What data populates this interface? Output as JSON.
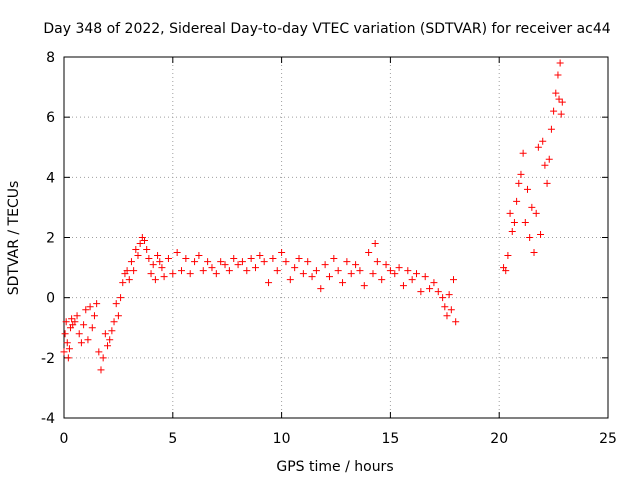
{
  "chart_data": {
    "type": "scatter",
    "title": "Day 348 of 2022, Sidereal Day-to-day VTEC variation (SDTVAR) for receiver ac44",
    "xlabel": "GPS time / hours",
    "ylabel": "SDTVAR / TECUs",
    "xlim": [
      0,
      25
    ],
    "ylim": [
      -4,
      8
    ],
    "xticks": [
      0,
      5,
      10,
      15,
      20,
      25
    ],
    "xtick_labels": [
      "0",
      "5",
      "10",
      "15",
      "20",
      "25"
    ],
    "yticks": [
      -4,
      -2,
      0,
      2,
      4,
      6,
      8
    ],
    "ytick_labels": [
      "-4",
      "-2",
      "0",
      "2",
      "4",
      "6",
      "8"
    ],
    "grid": true,
    "marker": "+",
    "color": "#ff0000",
    "series": [
      {
        "name": "SDTVAR",
        "x": [
          0.0,
          0.05,
          0.1,
          0.15,
          0.2,
          0.25,
          0.3,
          0.35,
          0.4,
          0.5,
          0.6,
          0.7,
          0.8,
          0.9,
          1.0,
          1.1,
          1.2,
          1.3,
          1.4,
          1.5,
          1.6,
          1.7,
          1.8,
          1.9,
          2.0,
          2.1,
          2.2,
          2.3,
          2.4,
          2.5,
          2.6,
          2.7,
          2.8,
          2.9,
          3.0,
          3.1,
          3.2,
          3.3,
          3.4,
          3.5,
          3.6,
          3.7,
          3.8,
          3.9,
          4.0,
          4.1,
          4.2,
          4.3,
          4.4,
          4.5,
          4.6,
          4.8,
          5.0,
          5.2,
          5.4,
          5.6,
          5.8,
          6.0,
          6.2,
          6.4,
          6.6,
          6.8,
          7.0,
          7.2,
          7.4,
          7.6,
          7.8,
          8.0,
          8.2,
          8.4,
          8.6,
          8.8,
          9.0,
          9.2,
          9.4,
          9.6,
          9.8,
          10.0,
          10.2,
          10.4,
          10.6,
          10.8,
          11.0,
          11.2,
          11.4,
          11.6,
          11.8,
          12.0,
          12.2,
          12.4,
          12.6,
          12.8,
          13.0,
          13.2,
          13.4,
          13.6,
          13.8,
          14.0,
          14.2,
          14.3,
          14.4,
          14.6,
          14.8,
          15.0,
          15.2,
          15.4,
          15.6,
          15.8,
          16.0,
          16.2,
          16.4,
          16.6,
          16.8,
          17.0,
          17.2,
          17.4,
          17.5,
          17.6,
          17.7,
          17.8,
          17.9,
          18.0,
          20.2,
          20.3,
          20.4,
          20.5,
          20.6,
          20.7,
          20.8,
          20.9,
          21.0,
          21.1,
          21.2,
          21.3,
          21.4,
          21.5,
          21.6,
          21.7,
          21.8,
          21.9,
          22.0,
          22.1,
          22.2,
          22.3,
          22.4,
          22.5,
          22.6,
          22.7,
          22.75,
          22.8,
          22.85,
          22.9
        ],
        "y": [
          -1.8,
          -1.2,
          -0.8,
          -1.5,
          -2.0,
          -1.7,
          -1.0,
          -0.7,
          -0.9,
          -0.8,
          -0.6,
          -1.2,
          -1.5,
          -0.9,
          -0.4,
          -1.4,
          -0.3,
          -1.0,
          -0.6,
          -0.2,
          -1.8,
          -2.4,
          -2.0,
          -1.2,
          -1.6,
          -1.4,
          -1.1,
          -0.8,
          -0.2,
          -0.6,
          0.0,
          0.5,
          0.8,
          0.9,
          0.6,
          1.2,
          0.9,
          1.6,
          1.4,
          1.8,
          2.0,
          1.9,
          1.6,
          1.3,
          0.8,
          1.1,
          0.6,
          1.4,
          1.2,
          1.0,
          0.7,
          1.3,
          0.8,
          1.5,
          0.9,
          1.3,
          0.8,
          1.2,
          1.4,
          0.9,
          1.2,
          1.0,
          0.8,
          1.2,
          1.1,
          0.9,
          1.3,
          1.1,
          1.2,
          0.9,
          1.3,
          1.0,
          1.4,
          1.2,
          0.5,
          1.3,
          0.9,
          1.5,
          1.2,
          0.6,
          1.0,
          1.3,
          0.8,
          1.2,
          0.7,
          0.9,
          0.3,
          1.1,
          0.7,
          1.3,
          0.9,
          0.5,
          1.2,
          0.8,
          1.1,
          0.9,
          0.4,
          1.5,
          0.8,
          1.8,
          1.2,
          0.6,
          1.1,
          0.9,
          0.8,
          1.0,
          0.4,
          0.9,
          0.6,
          0.8,
          0.2,
          0.7,
          0.3,
          0.5,
          0.2,
          0.0,
          -0.3,
          -0.6,
          0.1,
          -0.4,
          0.6,
          -0.8,
          1.0,
          0.9,
          1.4,
          2.8,
          2.2,
          2.5,
          3.2,
          3.8,
          4.1,
          4.8,
          2.5,
          3.6,
          2.0,
          3.0,
          1.5,
          2.8,
          5.0,
          2.1,
          5.2,
          4.4,
          3.8,
          4.6,
          5.6,
          6.2,
          6.8,
          7.4,
          6.6,
          7.8,
          6.1,
          6.5
        ]
      }
    ]
  }
}
